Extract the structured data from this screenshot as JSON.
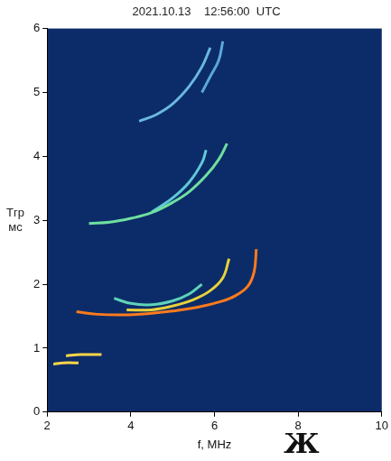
{
  "chart_data": {
    "type": "scatter",
    "title": "2021.10.13    12:56:00  UTC",
    "x_label": "f, MHz",
    "y_label": [
      "Тгр",
      "мс"
    ],
    "logo": "Ж",
    "xlim": [
      2,
      10
    ],
    "xticks": [
      2,
      4,
      6,
      8,
      10
    ],
    "ylim": [
      0,
      6
    ],
    "yticks": [
      0,
      1,
      2,
      3,
      4,
      5,
      6
    ],
    "grid": false,
    "series": [
      {
        "color": "#ff7b1c",
        "x": [
          2.7,
          3.2,
          3.8,
          4.4,
          5.0,
          5.6,
          6.1,
          6.5,
          6.8,
          6.95,
          7.0
        ],
        "values": [
          1.57,
          1.53,
          1.52,
          1.54,
          1.58,
          1.64,
          1.72,
          1.82,
          1.97,
          2.2,
          2.55
        ]
      },
      {
        "color": "#e8d23a",
        "x": [
          3.9,
          4.5,
          5.0,
          5.5,
          5.9,
          6.2,
          6.35
        ],
        "values": [
          1.6,
          1.6,
          1.66,
          1.76,
          1.9,
          2.1,
          2.4
        ]
      },
      {
        "color": "#5fd3b8",
        "x": [
          3.6,
          4.0,
          4.5,
          5.0,
          5.4,
          5.7
        ],
        "values": [
          1.78,
          1.7,
          1.68,
          1.74,
          1.85,
          2.0
        ]
      },
      {
        "color": "#6fe0a0",
        "x": [
          3.0,
          3.5,
          4.0,
          4.5,
          5.0,
          5.4,
          5.8,
          6.1,
          6.3
        ],
        "values": [
          2.95,
          2.97,
          3.03,
          3.12,
          3.28,
          3.45,
          3.7,
          3.95,
          4.2
        ]
      },
      {
        "color": "#5fc8d8",
        "x": [
          4.5,
          5.0,
          5.4,
          5.7,
          5.8
        ],
        "values": [
          3.13,
          3.35,
          3.6,
          3.9,
          4.1
        ]
      },
      {
        "color": "#6ab8e0",
        "x": [
          4.2,
          4.6,
          5.0,
          5.4,
          5.7,
          5.9
        ],
        "values": [
          4.55,
          4.65,
          4.82,
          5.1,
          5.4,
          5.7
        ]
      },
      {
        "color": "#5aa8d8",
        "x": [
          5.7,
          5.9,
          6.1,
          6.2
        ],
        "values": [
          5.0,
          5.25,
          5.5,
          5.8
        ]
      },
      {
        "color": "#ffd54a",
        "x": [
          2.15,
          2.4,
          2.75
        ],
        "values": [
          0.75,
          0.77,
          0.77
        ]
      },
      {
        "color": "#ffd54a",
        "x": [
          2.45,
          2.8,
          3.3
        ],
        "values": [
          0.88,
          0.9,
          0.9
        ]
      }
    ]
  }
}
